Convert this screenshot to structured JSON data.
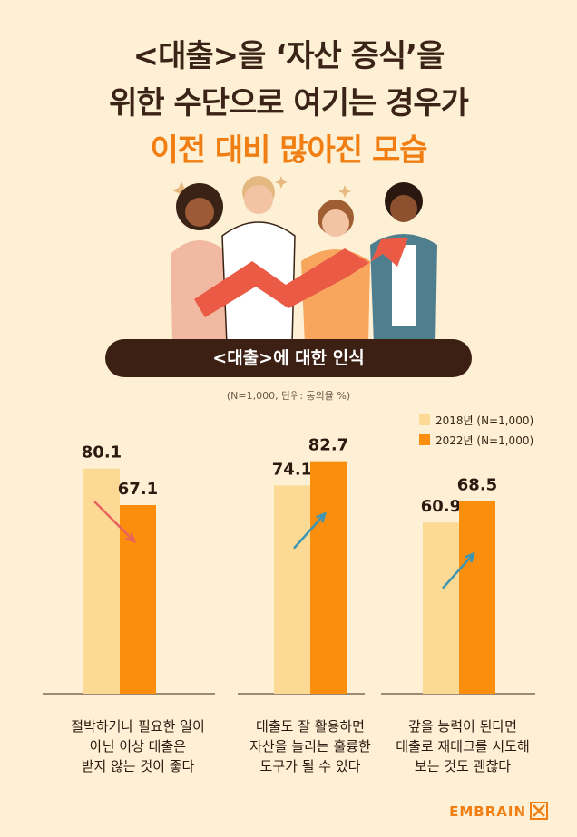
{
  "header": {
    "title_line1": "<대출>을 ‘자산 증식’을",
    "title_line2": "위한 수단으로 여기는 경우가",
    "title_line3": "이전 대비 많아진 모습"
  },
  "section_label": "<대출>에 대한 인식",
  "note": "(N=1,000, 단위: 동의율 %)",
  "brand": "EMBRAIN",
  "colors": {
    "y2018": "#fcd995",
    "y2022": "#fb8e0d",
    "down_arrow": "#e8625d",
    "up_arrow": "#3c96b3",
    "title_accent": "#f07e12"
  },
  "chart_data": {
    "type": "bar",
    "categories": [
      "절박하거나 필요한 일이 아닌 이상 대출은 받지 않는 것이 좋다",
      "대출도 잘 활용하면 자산을 늘리는 훌륭한 도구가 될 수 있다",
      "갚을 능력이 된다면 대출로 재테크를 시도해 보는 것도 괜찮다"
    ],
    "category_lines": [
      [
        "절박하거나 필요한 일이",
        "아닌 이상 대출은",
        "받지 않는 것이 좋다"
      ],
      [
        "대출도 잘 활용하면",
        "자산을 늘리는 훌륭한",
        "도구가 될 수 있다"
      ],
      [
        "갚을 능력이 된다면",
        "대출로 재테크를 시도해",
        "보는 것도 괜찮다"
      ]
    ],
    "series": [
      {
        "name": "2018년 (N=1,000)",
        "values": [
          80.1,
          74.1,
          60.9
        ]
      },
      {
        "name": "2022년 (N=1,000)",
        "values": [
          67.1,
          82.7,
          68.5
        ]
      }
    ],
    "trend": [
      "down",
      "up",
      "up"
    ],
    "ylim": [
      0,
      100
    ],
    "grid": false,
    "legend_position": "top-right"
  }
}
